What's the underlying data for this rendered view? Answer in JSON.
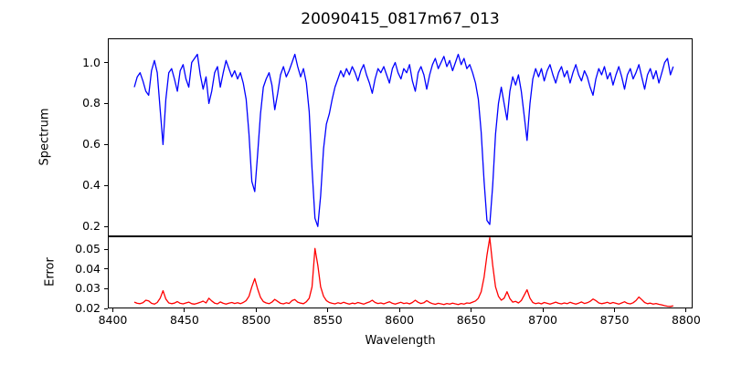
{
  "figure": {
    "title": "20090415_0817m67_013",
    "xlabel": "Wavelength",
    "background": "#ffffff",
    "spine_color": "#000000"
  },
  "chart_data": [
    {
      "type": "line",
      "panel": "spectrum",
      "ylabel": "Spectrum",
      "xlim": [
        8396.5,
        8804.5
      ],
      "ylim": [
        0.152,
        1.118
      ],
      "grid": false,
      "legend": "none",
      "ytick_values": [
        0.2,
        0.4,
        0.6,
        0.8,
        1.0
      ],
      "ytick_labels": [
        "0.2",
        "0.4",
        "0.6",
        "0.8",
        "1.0"
      ],
      "series": [
        {
          "name": "spectrum",
          "color": "#0000ff",
          "x_start": 8415,
          "x_step": 2,
          "values": [
            0.88,
            0.93,
            0.95,
            0.91,
            0.86,
            0.84,
            0.96,
            1.01,
            0.95,
            0.77,
            0.6,
            0.82,
            0.95,
            0.97,
            0.92,
            0.86,
            0.96,
            0.99,
            0.92,
            0.88,
            1.0,
            1.02,
            1.04,
            0.94,
            0.87,
            0.93,
            0.8,
            0.86,
            0.95,
            0.98,
            0.88,
            0.95,
            1.01,
            0.97,
            0.93,
            0.96,
            0.92,
            0.95,
            0.9,
            0.82,
            0.65,
            0.42,
            0.37,
            0.55,
            0.75,
            0.88,
            0.92,
            0.95,
            0.89,
            0.77,
            0.85,
            0.94,
            0.98,
            0.93,
            0.96,
            1.0,
            1.04,
            0.98,
            0.93,
            0.97,
            0.9,
            0.76,
            0.48,
            0.24,
            0.2,
            0.35,
            0.58,
            0.7,
            0.75,
            0.82,
            0.88,
            0.92,
            0.96,
            0.93,
            0.97,
            0.94,
            0.98,
            0.95,
            0.91,
            0.96,
            0.99,
            0.94,
            0.9,
            0.85,
            0.92,
            0.97,
            0.95,
            0.98,
            0.94,
            0.9,
            0.97,
            1.0,
            0.95,
            0.92,
            0.97,
            0.95,
            0.99,
            0.91,
            0.86,
            0.95,
            0.98,
            0.94,
            0.87,
            0.94,
            0.99,
            1.02,
            0.97,
            1.0,
            1.03,
            0.98,
            1.01,
            0.96,
            1.0,
            1.04,
            0.99,
            1.02,
            0.97,
            0.99,
            0.95,
            0.9,
            0.82,
            0.66,
            0.42,
            0.23,
            0.21,
            0.4,
            0.65,
            0.8,
            0.88,
            0.8,
            0.72,
            0.86,
            0.93,
            0.89,
            0.94,
            0.86,
            0.74,
            0.62,
            0.8,
            0.92,
            0.97,
            0.93,
            0.97,
            0.91,
            0.96,
            0.99,
            0.94,
            0.9,
            0.95,
            0.98,
            0.93,
            0.96,
            0.9,
            0.95,
            0.99,
            0.94,
            0.91,
            0.96,
            0.93,
            0.88,
            0.84,
            0.92,
            0.97,
            0.94,
            0.98,
            0.92,
            0.95,
            0.89,
            0.94,
            0.98,
            0.93,
            0.87,
            0.94,
            0.97,
            0.92,
            0.95,
            0.99,
            0.93,
            0.87,
            0.94,
            0.97,
            0.92,
            0.96,
            0.9,
            0.95,
            1.0,
            1.02,
            0.94,
            0.98
          ]
        }
      ]
    },
    {
      "type": "line",
      "panel": "error",
      "ylabel": "Error",
      "xlabel": "Wavelength",
      "xlim": [
        8396.5,
        8804.5
      ],
      "ylim": [
        0.02,
        0.0567
      ],
      "grid": false,
      "legend": "none",
      "ytick_values": [
        0.02,
        0.03,
        0.04,
        0.05
      ],
      "ytick_labels": [
        "0.02",
        "0.03",
        "0.04",
        "0.05"
      ],
      "xtick_values": [
        8400,
        8450,
        8500,
        8550,
        8600,
        8650,
        8700,
        8750,
        8800
      ],
      "xtick_labels": [
        "8400",
        "8450",
        "8500",
        "8550",
        "8600",
        "8650",
        "8700",
        "8750",
        "8800"
      ],
      "series": [
        {
          "name": "error",
          "color": "#ff0000",
          "x_start": 8415,
          "x_step": 2,
          "values": [
            0.0232,
            0.0226,
            0.0224,
            0.0229,
            0.0242,
            0.0238,
            0.0226,
            0.0222,
            0.023,
            0.0252,
            0.029,
            0.0248,
            0.0228,
            0.0224,
            0.0227,
            0.0235,
            0.0226,
            0.0223,
            0.0228,
            0.0232,
            0.0224,
            0.0222,
            0.0226,
            0.0231,
            0.0237,
            0.0228,
            0.0252,
            0.0238,
            0.0227,
            0.0223,
            0.0233,
            0.0226,
            0.0222,
            0.0227,
            0.023,
            0.0225,
            0.0229,
            0.0224,
            0.023,
            0.024,
            0.0262,
            0.031,
            0.0352,
            0.03,
            0.0256,
            0.0235,
            0.0228,
            0.0224,
            0.0232,
            0.0246,
            0.0236,
            0.0226,
            0.0223,
            0.0229,
            0.0225,
            0.024,
            0.0245,
            0.0232,
            0.0227,
            0.0224,
            0.0234,
            0.0252,
            0.031,
            0.0505,
            0.042,
            0.031,
            0.0262,
            0.024,
            0.023,
            0.0226,
            0.0223,
            0.0229,
            0.0225,
            0.0231,
            0.0226,
            0.0222,
            0.0227,
            0.0224,
            0.023,
            0.0226,
            0.0222,
            0.0228,
            0.0233,
            0.0242,
            0.023,
            0.0225,
            0.0228,
            0.0223,
            0.0229,
            0.0234,
            0.0226,
            0.0222,
            0.0227,
            0.0231,
            0.0225,
            0.0228,
            0.0223,
            0.023,
            0.0242,
            0.0231,
            0.0225,
            0.0229,
            0.024,
            0.023,
            0.0224,
            0.0221,
            0.0226,
            0.0223,
            0.022,
            0.0225,
            0.0222,
            0.0227,
            0.0223,
            0.022,
            0.0225,
            0.0222,
            0.0228,
            0.0226,
            0.0232,
            0.0238,
            0.0252,
            0.0285,
            0.036,
            0.047,
            0.056,
            0.042,
            0.031,
            0.0262,
            0.0242,
            0.0252,
            0.0285,
            0.025,
            0.0232,
            0.0236,
            0.0228,
            0.024,
            0.0268,
            0.0295,
            0.0252,
            0.023,
            0.0224,
            0.0228,
            0.0223,
            0.023,
            0.0226,
            0.0222,
            0.0227,
            0.0232,
            0.0226,
            0.0223,
            0.0228,
            0.0224,
            0.0231,
            0.0226,
            0.0222,
            0.0227,
            0.0233,
            0.0225,
            0.0229,
            0.0236,
            0.0248,
            0.024,
            0.0228,
            0.0224,
            0.0227,
            0.0231,
            0.0225,
            0.023,
            0.0226,
            0.0222,
            0.0228,
            0.0234,
            0.0226,
            0.0223,
            0.0229,
            0.024,
            0.0258,
            0.0245,
            0.023,
            0.0224,
            0.0227,
            0.0222,
            0.0225,
            0.0221,
            0.0218,
            0.0214,
            0.0211,
            0.021,
            0.0213
          ]
        }
      ]
    }
  ]
}
